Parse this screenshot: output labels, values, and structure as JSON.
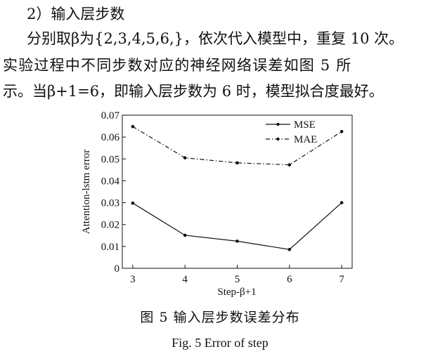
{
  "paragraph": {
    "line1": "2）输入层步数",
    "line2": "分别取β为{2,3,4,5,6,}，依次代入模型中，重复 10 次。",
    "line3": "实验过程中不同步数对应的神经网络误差如图 5 所",
    "line4": "示。当β+1=6，即输入层步数为 6 时，模型拟合度最好。"
  },
  "figure": {
    "caption_cn": "图 5  输入层步数误差分布",
    "caption_en": "Fig. 5    Error of step"
  },
  "chart_data": {
    "type": "line",
    "x": [
      3,
      4,
      5,
      6,
      7
    ],
    "xticks": [
      "3",
      "4",
      "5",
      "6",
      "7"
    ],
    "yticks": [
      "0",
      "0.01",
      "0.02",
      "0.03",
      "0.04",
      "0.05",
      "0.06",
      "0.07"
    ],
    "ylim": [
      0,
      0.07
    ],
    "xlim": [
      2.8,
      7.2
    ],
    "xlabel": "Step-β+1",
    "ylabel": "Attention-lstm error",
    "legend_position": "top-right",
    "grid": false,
    "series": [
      {
        "name": "MSE",
        "style": "solid",
        "values": [
          0.0298,
          0.0151,
          0.0124,
          0.0086,
          0.03
        ]
      },
      {
        "name": "MAE",
        "style": "dashdot",
        "values": [
          0.0648,
          0.0505,
          0.0482,
          0.0473,
          0.0625
        ]
      }
    ]
  }
}
